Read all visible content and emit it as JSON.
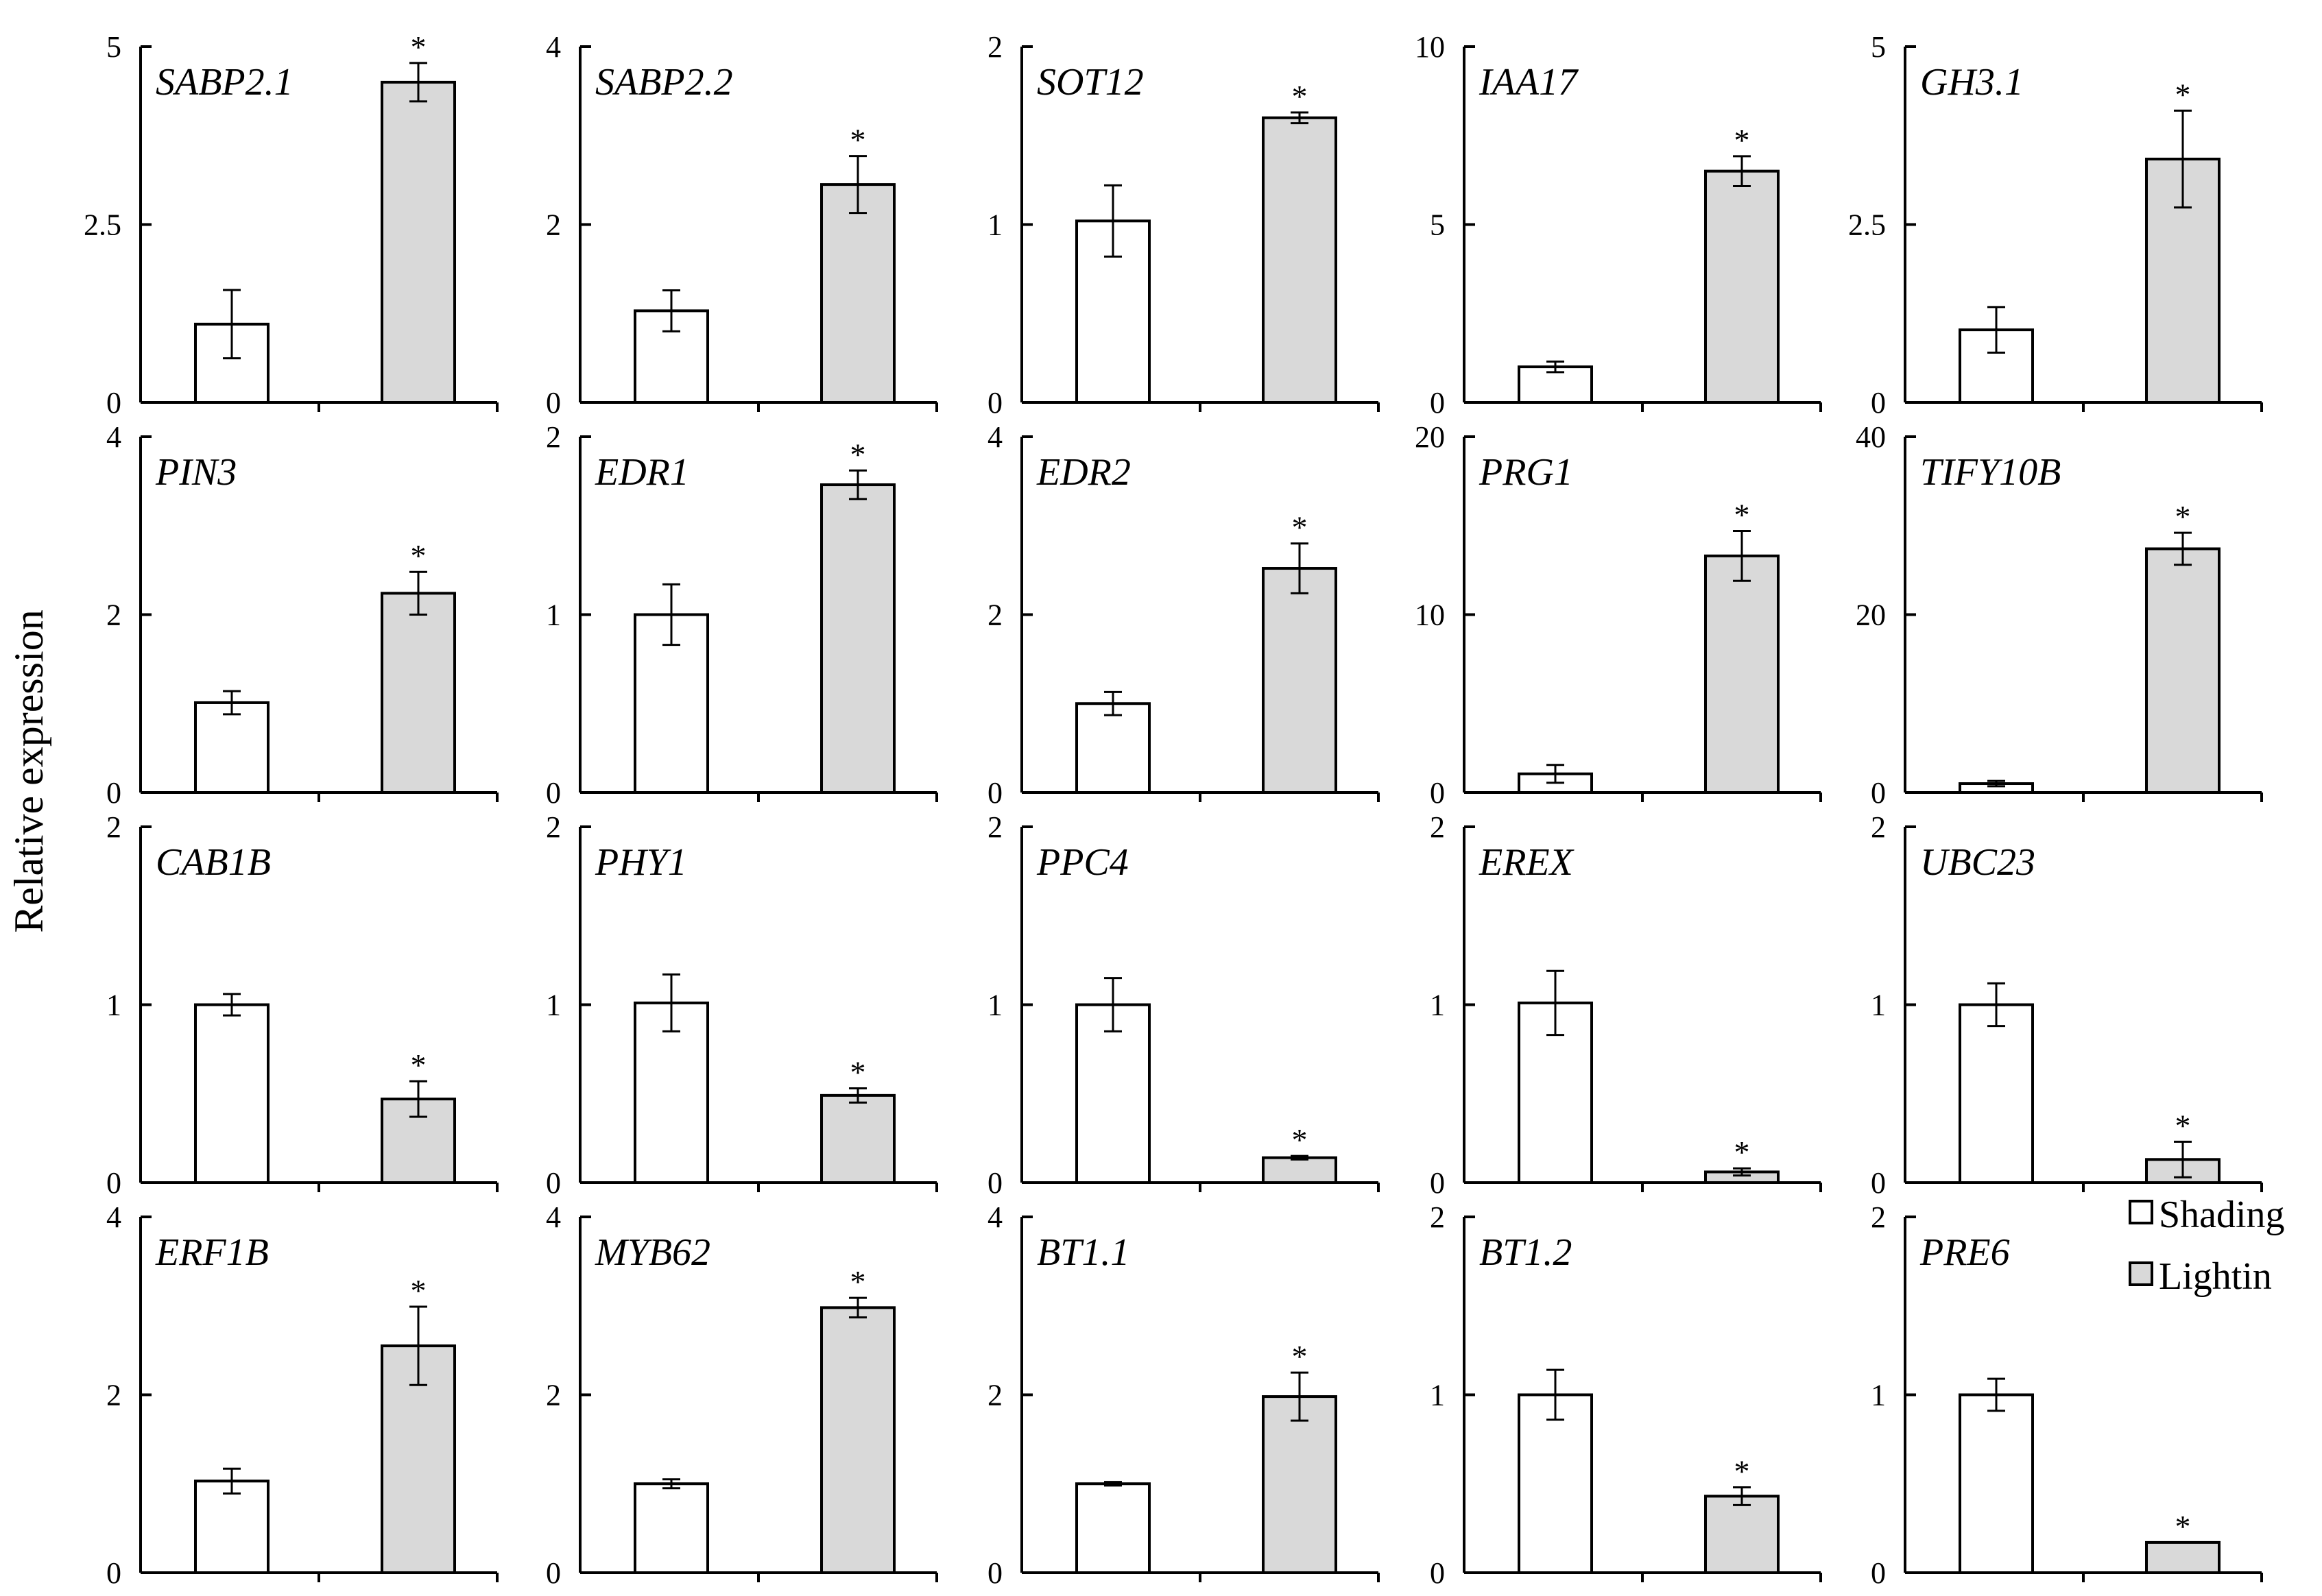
{
  "figure": {
    "ylabel": "Relative expression",
    "legend": [
      {
        "label": "Shading",
        "color": "#ffffff"
      },
      {
        "label": "Lightin",
        "color": "#d9d9d9"
      }
    ]
  },
  "colors": {
    "shading": "#ffffff",
    "lighting": "#d9d9d9",
    "stroke": "#000000"
  },
  "chart_data": [
    {
      "type": "bar",
      "title": "SABP2.1",
      "ylim": [
        0,
        5
      ],
      "yticks": [
        "0",
        "2.5",
        "5"
      ],
      "series": [
        {
          "name": "Shading",
          "value": 1.1,
          "error": 0.48,
          "significant": false
        },
        {
          "name": "Lightin",
          "value": 4.5,
          "error": 0.27,
          "significant": true
        }
      ]
    },
    {
      "type": "bar",
      "title": "SABP2.2",
      "ylim": [
        0,
        4
      ],
      "yticks": [
        "0",
        "2",
        "4"
      ],
      "series": [
        {
          "name": "Shading",
          "value": 1.03,
          "error": 0.23,
          "significant": false
        },
        {
          "name": "Lightin",
          "value": 2.45,
          "error": 0.32,
          "significant": true
        }
      ]
    },
    {
      "type": "bar",
      "title": "SOT12",
      "ylim": [
        0,
        2
      ],
      "yticks": [
        "0",
        "1",
        "2"
      ],
      "series": [
        {
          "name": "Shading",
          "value": 1.02,
          "error": 0.2,
          "significant": false
        },
        {
          "name": "Lightin",
          "value": 1.6,
          "error": 0.03,
          "significant": true
        }
      ]
    },
    {
      "type": "bar",
      "title": "IAA17",
      "ylim": [
        0,
        10
      ],
      "yticks": [
        "0",
        "5",
        "10"
      ],
      "series": [
        {
          "name": "Shading",
          "value": 1.0,
          "error": 0.15,
          "significant": false
        },
        {
          "name": "Lightin",
          "value": 6.5,
          "error": 0.42,
          "significant": true
        }
      ]
    },
    {
      "type": "bar",
      "title": "GH3.1",
      "ylim": [
        0,
        5
      ],
      "yticks": [
        "0",
        "2.5",
        "5"
      ],
      "series": [
        {
          "name": "Shading",
          "value": 1.02,
          "error": 0.32,
          "significant": false
        },
        {
          "name": "Lightin",
          "value": 3.42,
          "error": 0.68,
          "significant": true
        }
      ]
    },
    {
      "type": "bar",
      "title": "PIN3",
      "ylim": [
        0,
        4
      ],
      "yticks": [
        "0",
        "2",
        "4"
      ],
      "series": [
        {
          "name": "Shading",
          "value": 1.01,
          "error": 0.13,
          "significant": false
        },
        {
          "name": "Lightin",
          "value": 2.24,
          "error": 0.24,
          "significant": true
        }
      ]
    },
    {
      "type": "bar",
      "title": "EDR1",
      "ylim": [
        0,
        2
      ],
      "yticks": [
        "0",
        "1",
        "2"
      ],
      "series": [
        {
          "name": "Shading",
          "value": 1.0,
          "error": 0.17,
          "significant": false
        },
        {
          "name": "Lightin",
          "value": 1.73,
          "error": 0.08,
          "significant": true
        }
      ]
    },
    {
      "type": "bar",
      "title": "EDR2",
      "ylim": [
        0,
        4
      ],
      "yticks": [
        "0",
        "2",
        "4"
      ],
      "series": [
        {
          "name": "Shading",
          "value": 1.0,
          "error": 0.13,
          "significant": false
        },
        {
          "name": "Lightin",
          "value": 2.52,
          "error": 0.28,
          "significant": true
        }
      ]
    },
    {
      "type": "bar",
      "title": "PRG1",
      "ylim": [
        0,
        20
      ],
      "yticks": [
        "0",
        "10",
        "20"
      ],
      "series": [
        {
          "name": "Shading",
          "value": 1.05,
          "error": 0.5,
          "significant": false
        },
        {
          "name": "Lightin",
          "value": 13.3,
          "error": 1.4,
          "significant": true
        }
      ]
    },
    {
      "type": "bar",
      "title": "TIFY10B",
      "ylim": [
        0,
        40
      ],
      "yticks": [
        "0",
        "20",
        "40"
      ],
      "series": [
        {
          "name": "Shading",
          "value": 1.0,
          "error": 0.3,
          "significant": false
        },
        {
          "name": "Lightin",
          "value": 27.4,
          "error": 1.8,
          "significant": true
        }
      ]
    },
    {
      "type": "bar",
      "title": "CAB1B",
      "ylim": [
        0,
        2
      ],
      "yticks": [
        "0",
        "1",
        "2"
      ],
      "series": [
        {
          "name": "Shading",
          "value": 1.0,
          "error": 0.06,
          "significant": false
        },
        {
          "name": "Lightin",
          "value": 0.47,
          "error": 0.1,
          "significant": true
        }
      ]
    },
    {
      "type": "bar",
      "title": "PHY1",
      "ylim": [
        0,
        2
      ],
      "yticks": [
        "0",
        "1",
        "2"
      ],
      "series": [
        {
          "name": "Shading",
          "value": 1.01,
          "error": 0.16,
          "significant": false
        },
        {
          "name": "Lightin",
          "value": 0.49,
          "error": 0.04,
          "significant": true
        }
      ]
    },
    {
      "type": "bar",
      "title": "PPC4",
      "ylim": [
        0,
        2
      ],
      "yticks": [
        "0",
        "1",
        "2"
      ],
      "series": [
        {
          "name": "Shading",
          "value": 1.0,
          "error": 0.15,
          "significant": false
        },
        {
          "name": "Lightin",
          "value": 0.14,
          "error": 0.01,
          "significant": true
        }
      ]
    },
    {
      "type": "bar",
      "title": "EREX",
      "ylim": [
        0,
        2
      ],
      "yticks": [
        "0",
        "1",
        "2"
      ],
      "series": [
        {
          "name": "Shading",
          "value": 1.01,
          "error": 0.18,
          "significant": false
        },
        {
          "name": "Lightin",
          "value": 0.06,
          "error": 0.02,
          "significant": true
        }
      ]
    },
    {
      "type": "bar",
      "title": "UBC23",
      "ylim": [
        0,
        2
      ],
      "yticks": [
        "0",
        "1",
        "2"
      ],
      "series": [
        {
          "name": "Shading",
          "value": 1.0,
          "error": 0.12,
          "significant": false
        },
        {
          "name": "Lightin",
          "value": 0.13,
          "error": 0.1,
          "significant": true
        }
      ]
    },
    {
      "type": "bar",
      "title": "ERF1B",
      "ylim": [
        0,
        4
      ],
      "yticks": [
        "0",
        "2",
        "4"
      ],
      "series": [
        {
          "name": "Shading",
          "value": 1.03,
          "error": 0.14,
          "significant": false
        },
        {
          "name": "Lightin",
          "value": 2.55,
          "error": 0.44,
          "significant": true
        }
      ]
    },
    {
      "type": "bar",
      "title": "MYB62",
      "ylim": [
        0,
        4
      ],
      "yticks": [
        "0",
        "2",
        "4"
      ],
      "series": [
        {
          "name": "Shading",
          "value": 1.0,
          "error": 0.05,
          "significant": false
        },
        {
          "name": "Lightin",
          "value": 2.98,
          "error": 0.11,
          "significant": true
        }
      ]
    },
    {
      "type": "bar",
      "title": "BT1.1",
      "ylim": [
        0,
        4
      ],
      "yticks": [
        "0",
        "2",
        "4"
      ],
      "series": [
        {
          "name": "Shading",
          "value": 1.0,
          "error": 0.02,
          "significant": false
        },
        {
          "name": "Lightin",
          "value": 1.98,
          "error": 0.27,
          "significant": true
        }
      ]
    },
    {
      "type": "bar",
      "title": "BT1.2",
      "ylim": [
        0,
        2
      ],
      "yticks": [
        "0",
        "1",
        "2"
      ],
      "series": [
        {
          "name": "Shading",
          "value": 1.0,
          "error": 0.14,
          "significant": false
        },
        {
          "name": "Lightin",
          "value": 0.43,
          "error": 0.05,
          "significant": true
        }
      ]
    },
    {
      "type": "bar",
      "title": "PRE6",
      "ylim": [
        0,
        2
      ],
      "yticks": [
        "0",
        "1",
        "2"
      ],
      "series": [
        {
          "name": "Shading",
          "value": 1.0,
          "error": 0.09,
          "significant": false
        },
        {
          "name": "Lightin",
          "value": 0.17,
          "error": 0.0,
          "significant": true
        }
      ]
    }
  ]
}
